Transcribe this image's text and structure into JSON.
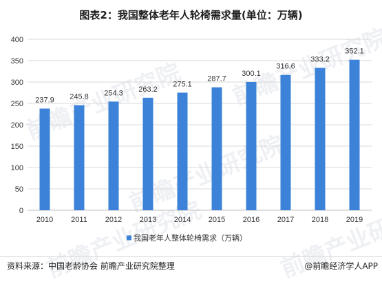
{
  "title": "图表2：我国整体老年人轮椅需求量(单位：万辆)",
  "source": "资料来源：中国老龄协会 前瞻产业研究院整理",
  "credit": "@前瞻经济学人APP",
  "watermark": "前瞻产业研究院",
  "colors": {
    "bar": "#3b82d8",
    "grid": "#d9d9d9",
    "axis": "#bfbfbf",
    "text": "#333333"
  },
  "chart_data": {
    "type": "bar",
    "categories": [
      "2010",
      "2011",
      "2012",
      "2013",
      "2014",
      "2015",
      "2016",
      "2017",
      "2018",
      "2019"
    ],
    "series": [
      {
        "name": "我国老年人整体轮椅需求（万辆）",
        "values": [
          237.9,
          245.8,
          254.3,
          263.2,
          275.1,
          287.7,
          300.1,
          316.6,
          333.2,
          352.1
        ]
      }
    ],
    "ylim": [
      0,
      400
    ],
    "yticks": [
      0,
      50,
      100,
      150,
      200,
      250,
      300,
      350,
      400
    ],
    "data_labels": [
      "237.9",
      "245.8",
      "254.3",
      "263.2",
      "275.1",
      "287.7",
      "300.1",
      "316.6",
      "333.2",
      "352.1"
    ],
    "grid": true,
    "legend": "bottom-center"
  }
}
